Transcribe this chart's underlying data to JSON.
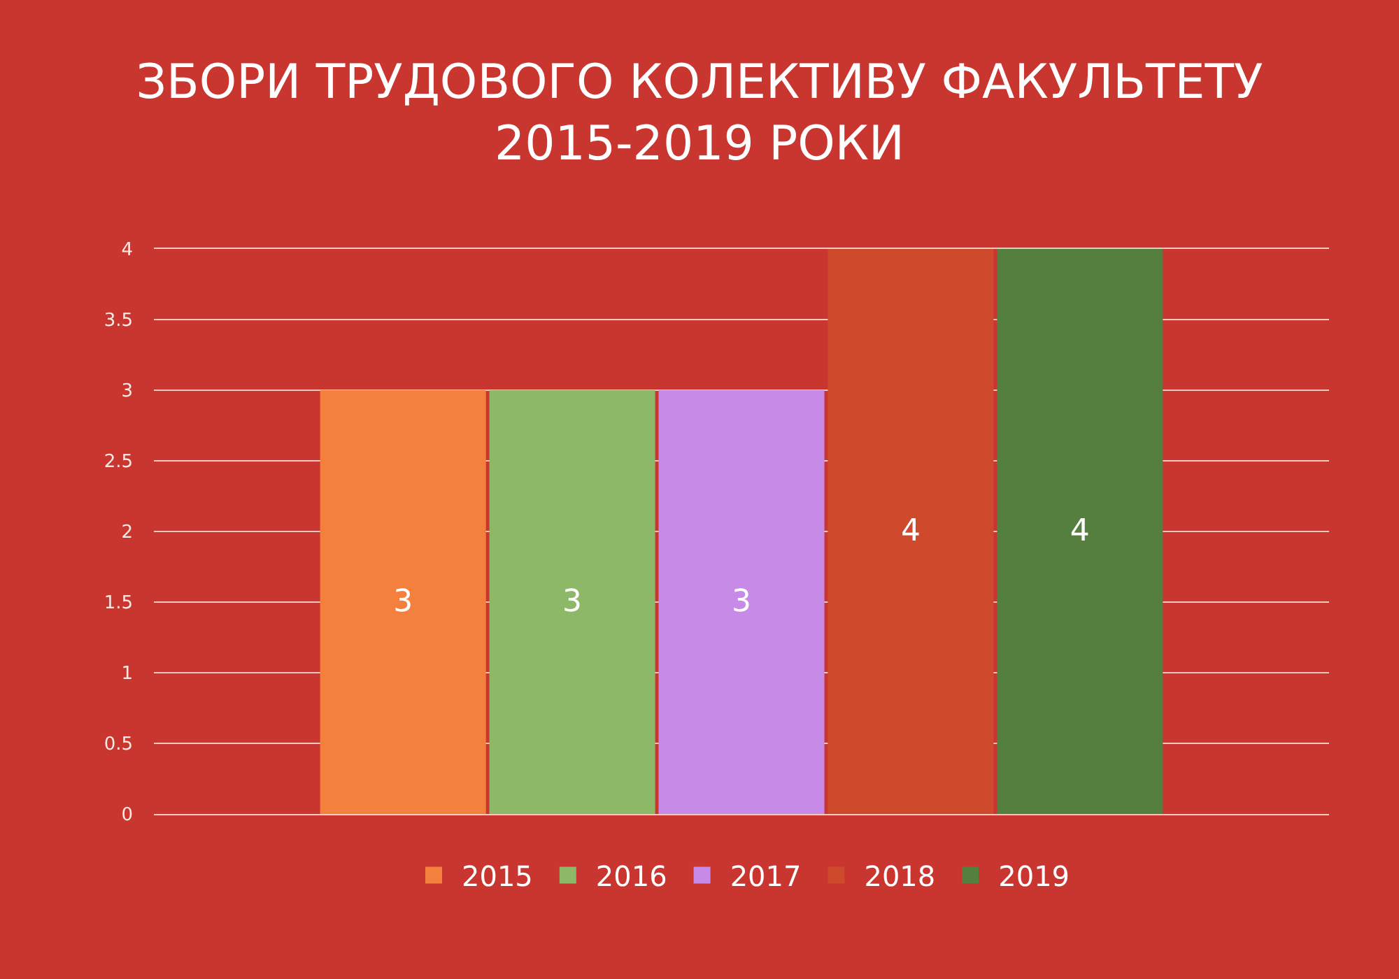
{
  "chart_data": {
    "type": "bar",
    "title": "ЗБОРИ ТРУДОВОГО КОЛЕКТИВУ ФАКУЛЬТЕТУ\n2015-2019 РОКИ",
    "categories": [
      null
    ],
    "series": [
      {
        "name": "2015",
        "color": "#f4803e",
        "values": [
          3
        ]
      },
      {
        "name": "2016",
        "color": "#8db868",
        "values": [
          3
        ]
      },
      {
        "name": "2017",
        "color": "#c78ae6",
        "values": [
          3
        ]
      },
      {
        "name": "2018",
        "color": "#cf4a2c",
        "values": [
          4
        ]
      },
      {
        "name": "2019",
        "color": "#557f3e",
        "values": [
          4
        ]
      }
    ],
    "ylim": [
      0,
      4
    ],
    "yticks": [
      0,
      0.5,
      1,
      1.5,
      2,
      2.5,
      3,
      3.5,
      4
    ],
    "grid": "y",
    "legend": "bottom",
    "data_labels": true,
    "tick_labels": "y"
  }
}
